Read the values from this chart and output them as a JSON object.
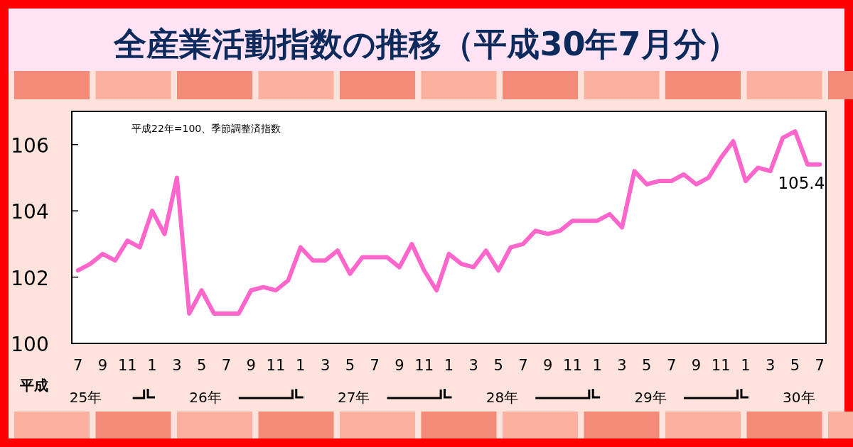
{
  "chart_data": {
    "type": "line",
    "title": "全産業活動指数の推移（平成30年7月分）",
    "annotations": [
      "平成22年=100、季節調整済指数",
      "平成",
      "25年",
      "26年",
      "27年",
      "28年",
      "29年",
      "30年"
    ],
    "categories": [
      "7",
      null,
      "9",
      null,
      "11",
      null,
      "1",
      null,
      "3",
      null,
      "5",
      null,
      "7",
      null,
      "9",
      null,
      "11",
      null,
      "1",
      null,
      "3",
      null,
      "5",
      null,
      "7",
      null,
      "9",
      null,
      "11",
      null,
      "1",
      null,
      "3",
      null,
      "5",
      null,
      "7",
      null,
      "9",
      null,
      "11",
      null,
      "1",
      null,
      "3",
      null,
      "5",
      null,
      "7",
      null,
      "9",
      null,
      "11",
      null,
      "1",
      null,
      "3",
      null,
      "5",
      null,
      "7"
    ],
    "series": [
      {
        "color": "#ff66cc",
        "values": [
          102.2,
          102.4,
          102.7,
          102.5,
          103.1,
          102.9,
          104.0,
          103.3,
          105.0,
          100.9,
          101.6,
          100.9,
          100.9,
          100.9,
          101.6,
          101.7,
          101.6,
          101.9,
          102.9,
          102.5,
          102.5,
          102.8,
          102.1,
          102.6,
          102.6,
          102.6,
          102.3,
          103.0,
          102.2,
          101.6,
          102.7,
          102.4,
          102.3,
          102.8,
          102.2,
          102.9,
          103.0,
          103.4,
          103.3,
          103.4,
          103.7,
          103.7,
          103.7,
          103.9,
          103.5,
          105.2,
          104.8,
          104.9,
          104.9,
          105.1,
          104.8,
          105.0,
          105.6,
          106.1,
          104.9,
          105.3,
          105.2,
          106.2,
          106.4,
          105.4,
          105.4
        ],
        "value_labels": [
          null,
          null,
          null,
          null,
          null,
          null,
          null,
          null,
          null,
          null,
          null,
          null,
          null,
          null,
          null,
          null,
          null,
          null,
          null,
          null,
          null,
          null,
          null,
          null,
          null,
          null,
          null,
          null,
          null,
          null,
          null,
          null,
          null,
          null,
          null,
          null,
          null,
          null,
          null,
          null,
          null,
          null,
          null,
          null,
          null,
          null,
          null,
          null,
          null,
          null,
          null,
          null,
          null,
          null,
          null,
          null,
          null,
          null,
          null,
          null,
          "105.4"
        ]
      }
    ],
    "ylim": [
      100,
      107
    ],
    "yticks": [
      100,
      102,
      104,
      106
    ],
    "grid": false,
    "marker": "none",
    "line_style": "solid"
  }
}
